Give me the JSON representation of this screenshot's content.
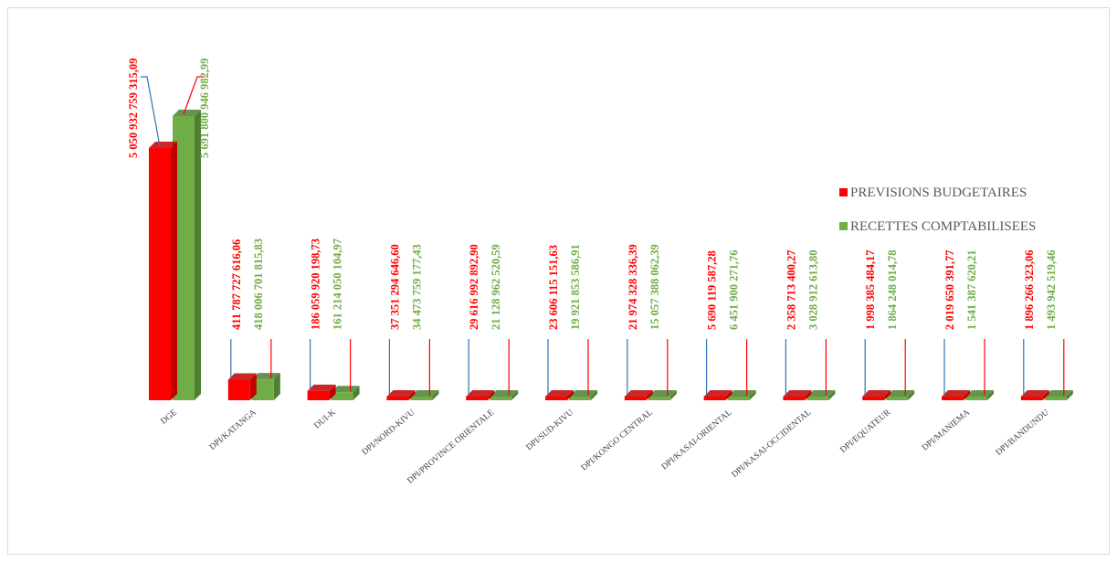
{
  "colors": {
    "series1": "#ff0000",
    "series1_side": "#c00000",
    "series2": "#70ad47",
    "series2_side": "#4e7f30",
    "leader_blue": "#2e75b6",
    "leader_red": "#ff0000"
  },
  "chart_data": {
    "type": "bar",
    "title": "",
    "xlabel": "",
    "ylabel": "",
    "ylim": [
      0,
      5691800946982.99
    ],
    "grid": false,
    "legend_position": "right",
    "categories": [
      "DGE",
      "DPI/KATANGA",
      "DUI-K",
      "DPI/NORD-KIVU",
      "DPI/PROVINCE ORIENTALE",
      "DPI/SUD-KIVU",
      "DPI/KONGO CENTRAL",
      "DPI/KASAI-ORIENTAL",
      "DPI/KASAI-OCCIDENTAL",
      "DPI/EQUATEUR",
      "DPI/MANIEMA",
      "DPI/BANDUNDU"
    ],
    "series": [
      {
        "name": "PREVISIONS BUDGETAIRES",
        "values": [
          5050932759315.09,
          411787727616.06,
          186059920198.73,
          37351294646.6,
          29616992892.9,
          23606115151.63,
          21974328336.39,
          5690119587.28,
          2358713400.27,
          1998385484.17,
          2019650391.77,
          1896266323.06
        ],
        "labels": [
          "5 050 932 759 315,09",
          "411 787 727 616,06",
          "186 059 920 198,73",
          "37 351 294 646,60",
          "29 616 992 892,90",
          "23 606 115 151,63",
          "21 974 328 336,39",
          "5 690 119 587,28",
          "2 358 713 400,27",
          "1 998 385 484,17",
          "2 019 650 391,77",
          "1 896 266 323,06"
        ]
      },
      {
        "name": "RECETTES COMPTABILISEES",
        "values": [
          5691800946982.99,
          418006701815.83,
          161214050104.97,
          34473759177.43,
          21128962520.59,
          19921853586.91,
          15057388062.39,
          6451900271.76,
          3028912613.8,
          1864248014.78,
          1541387620.21,
          1493942519.46
        ],
        "labels": [
          "5 691 800 946 982,99",
          "418 006 701 815,83",
          "161 214 050 104,97",
          "34 473 759 177,43",
          "21 128 962 520,59",
          "19 921 853 586,91",
          "15 057 388 062,39",
          "6 451 900 271,76",
          "3 028 912 613,80",
          "1 864 248 014,78",
          "1 541 387 620,21",
          "1 493 942 519,46"
        ]
      }
    ]
  }
}
